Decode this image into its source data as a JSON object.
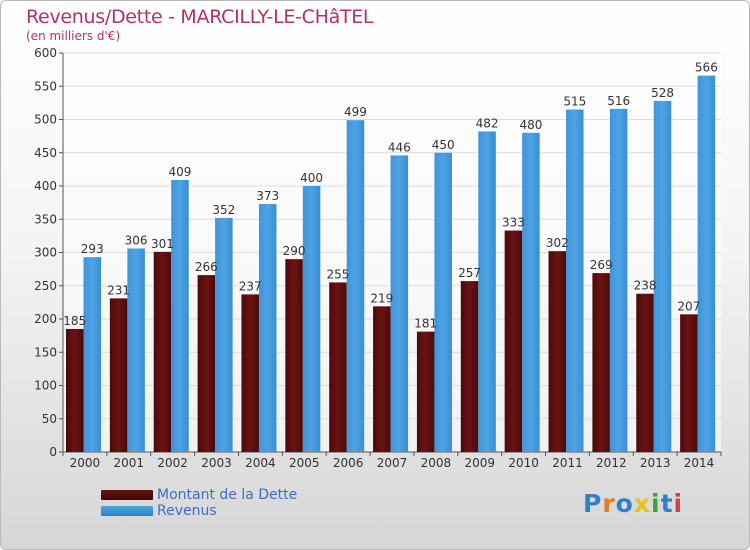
{
  "header": {
    "title": "Revenus/Dette - MARCILLY-LE-CHâTEL",
    "subtitle": "(en milliers d'€)"
  },
  "colors": {
    "dette": "#6b1313",
    "revenus": "#4da3e3"
  },
  "legend": {
    "dette_label": "Montant de la Dette",
    "revenus_label": "Revenus"
  },
  "logo": {
    "text": "Proxiti"
  },
  "chart_data": {
    "type": "bar",
    "categories": [
      "2000",
      "2001",
      "2002",
      "2003",
      "2004",
      "2005",
      "2006",
      "2007",
      "2008",
      "2009",
      "2010",
      "2011",
      "2012",
      "2013",
      "2014"
    ],
    "series": [
      {
        "name": "Montant de la Dette",
        "values": [
          185,
          231,
          301,
          266,
          237,
          290,
          255,
          219,
          181,
          257,
          333,
          302,
          269,
          238,
          207
        ]
      },
      {
        "name": "Revenus",
        "values": [
          293,
          306,
          409,
          352,
          373,
          400,
          499,
          446,
          450,
          482,
          480,
          515,
          516,
          528,
          566
        ]
      }
    ],
    "ylim": [
      0,
      600
    ],
    "yticks": [
      0,
      50,
      100,
      150,
      200,
      250,
      300,
      350,
      400,
      450,
      500,
      550,
      600
    ],
    "grid": true,
    "legend_position": "bottom-left"
  }
}
